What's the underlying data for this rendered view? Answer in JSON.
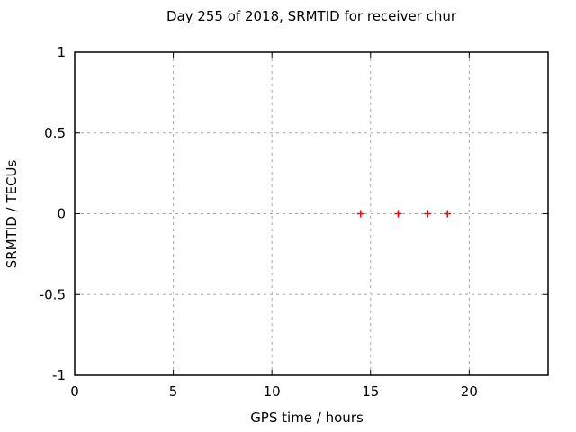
{
  "chart_data": {
    "type": "scatter",
    "title": "Day 255 of 2018, SRMTID for receiver chur",
    "xlabel": "GPS time / hours",
    "ylabel": "SRMTID / TECUs",
    "xlim": [
      0,
      24
    ],
    "ylim": [
      -1,
      1
    ],
    "xticks": [
      0,
      5,
      10,
      15,
      20
    ],
    "xtick_labels": [
      "0",
      "5",
      "10",
      "15",
      "20"
    ],
    "yticks": [
      -1,
      -0.5,
      0,
      0.5,
      1
    ],
    "ytick_labels": [
      "-1",
      "-0.5",
      "0",
      "0.5",
      "1"
    ],
    "grid": true,
    "grid_style": "dashed",
    "legend": "none",
    "series": [
      {
        "name": "SRMTID",
        "marker": "plus",
        "color": "#ff0000",
        "points": [
          {
            "x": 14.5,
            "y": 0.0
          },
          {
            "x": 16.4,
            "y": 0.0
          },
          {
            "x": 17.9,
            "y": 0.0
          },
          {
            "x": 18.9,
            "y": 0.0
          }
        ]
      }
    ],
    "colors": {
      "marker": "#ff0000",
      "grid": "#a8a8a8",
      "border": "#000000",
      "text": "#000000",
      "background": "#ffffff"
    }
  }
}
